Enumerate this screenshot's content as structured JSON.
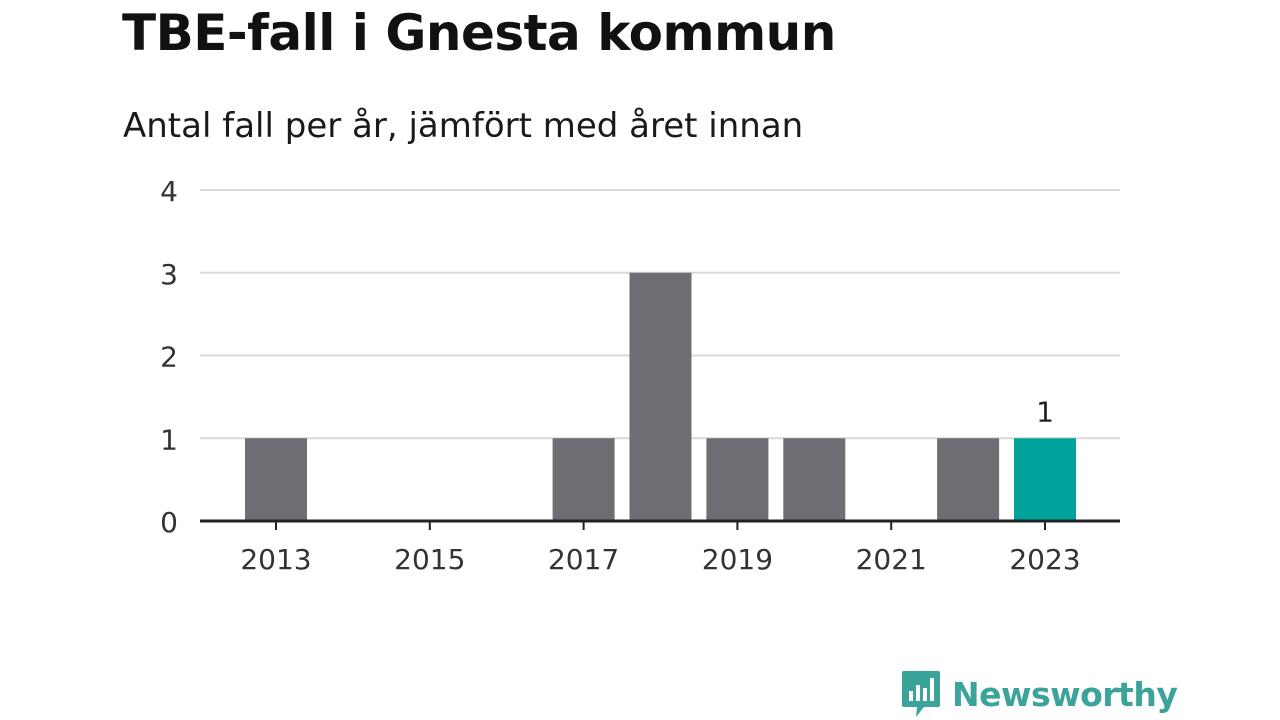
{
  "colors": {
    "bar": "#6e6d73",
    "highlight": "#00a39b",
    "grid": "#d9d9d9",
    "axis": "#222222",
    "brand": "#3aa39a"
  },
  "brand": {
    "name": "Newsworthy",
    "icon": "chart-speech-bubble-icon"
  },
  "chart_data": {
    "type": "bar",
    "title": "TBE-fall i Gnesta kommun",
    "subtitle": "Antal fall per år, jämfört med året innan",
    "categories": [
      "2013",
      "2014",
      "2015",
      "2016",
      "2017",
      "2018",
      "2019",
      "2020",
      "2021",
      "2022",
      "2023"
    ],
    "values": [
      1,
      0,
      0,
      0,
      1,
      3,
      1,
      1,
      0,
      1,
      1
    ],
    "highlight_index": 10,
    "data_labels": [
      {
        "index": 10,
        "text": "1"
      }
    ],
    "x_tick_labels": [
      "2013",
      "2015",
      "2017",
      "2019",
      "2021",
      "2023"
    ],
    "y_ticks": [
      0,
      1,
      2,
      3,
      4
    ],
    "ylim": [
      0,
      4
    ],
    "xlabel": "",
    "ylabel": "",
    "grid": true,
    "legend": "none"
  }
}
